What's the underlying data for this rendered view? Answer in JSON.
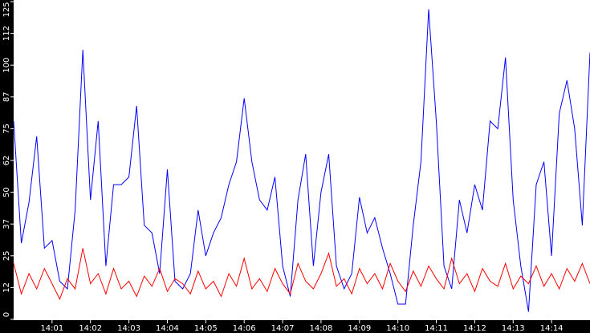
{
  "chart_data": {
    "type": "line",
    "xlim": [
      0,
      15
    ],
    "xticks": [
      {
        "value": 1,
        "label": "14:01"
      },
      {
        "value": 2,
        "label": "14:02"
      },
      {
        "value": 3,
        "label": "14:03"
      },
      {
        "value": 4,
        "label": "14:04"
      },
      {
        "value": 5,
        "label": "14:05"
      },
      {
        "value": 6,
        "label": "14:06"
      },
      {
        "value": 7,
        "label": "14:07"
      },
      {
        "value": 8,
        "label": "14:08"
      },
      {
        "value": 9,
        "label": "14:09"
      },
      {
        "value": 10,
        "label": "14:10"
      },
      {
        "value": 11,
        "label": "14:11"
      },
      {
        "value": 12,
        "label": "14:12"
      },
      {
        "value": 13,
        "label": "14:13"
      },
      {
        "value": 14,
        "label": "14:14"
      }
    ],
    "ylim": [
      0,
      125
    ],
    "yticks": [
      0,
      {
        "value": 12.5,
        "label": "12"
      },
      25,
      {
        "value": 37.5,
        "label": "37"
      },
      50,
      {
        "value": 62.5,
        "label": "62"
      },
      75,
      {
        "value": 87.5,
        "label": "87"
      },
      100,
      {
        "value": 112.5,
        "label": "112"
      },
      125
    ],
    "x": [
      0,
      0.2,
      0.4,
      0.6,
      0.8,
      1,
      1.2,
      1.4,
      1.6,
      1.8,
      2,
      2.2,
      2.4,
      2.6,
      2.8,
      3,
      3.2,
      3.4,
      3.6,
      3.8,
      4,
      4.2,
      4.4,
      4.6,
      4.8,
      5,
      5.2,
      5.4,
      5.6,
      5.8,
      6,
      6.2,
      6.4,
      6.6,
      6.8,
      7,
      7.2,
      7.4,
      7.6,
      7.8,
      8,
      8.2,
      8.4,
      8.6,
      8.8,
      9,
      9.2,
      9.4,
      9.6,
      9.8,
      10,
      10.2,
      10.4,
      10.6,
      10.8,
      11,
      11.2,
      11.4,
      11.6,
      11.8,
      12,
      12.2,
      12.4,
      12.6,
      12.8,
      13,
      13.2,
      13.4,
      13.6,
      13.8,
      14,
      14.2,
      14.4,
      14.6,
      14.8,
      15
    ],
    "series": [
      {
        "color": "#0000ff",
        "values": [
          78,
          30,
          46,
          72,
          28,
          31,
          15,
          12,
          43,
          106,
          47,
          78,
          21,
          53,
          53,
          56,
          84,
          37,
          34,
          18,
          59,
          15,
          12,
          18,
          43,
          25,
          34,
          40,
          53,
          62,
          87,
          62,
          47,
          43,
          56,
          21,
          9,
          47,
          65,
          21,
          50,
          65,
          21,
          12,
          18,
          48,
          34,
          40,
          28,
          18,
          6,
          6,
          37,
          62,
          122,
          78,
          21,
          12,
          47,
          34,
          53,
          43,
          78,
          75,
          103,
          47,
          21,
          3,
          53,
          62,
          25,
          81,
          94,
          75,
          37,
          105
        ]
      },
      {
        "color": "#ff0000",
        "values": [
          22,
          10,
          18,
          12,
          20,
          14,
          8,
          16,
          12,
          28,
          14,
          18,
          10,
          20,
          12,
          15,
          9,
          17,
          13,
          20,
          11,
          16,
          14,
          10,
          19,
          12,
          15,
          9,
          18,
          13,
          24,
          12,
          16,
          11,
          20,
          14,
          10,
          22,
          15,
          12,
          18,
          26,
          13,
          16,
          10,
          20,
          14,
          18,
          12,
          22,
          15,
          11,
          19,
          13,
          21,
          16,
          12,
          24,
          14,
          18,
          11,
          20,
          15,
          13,
          22,
          12,
          17,
          14,
          21,
          13,
          18,
          12,
          20,
          15,
          22,
          14
        ]
      }
    ]
  }
}
